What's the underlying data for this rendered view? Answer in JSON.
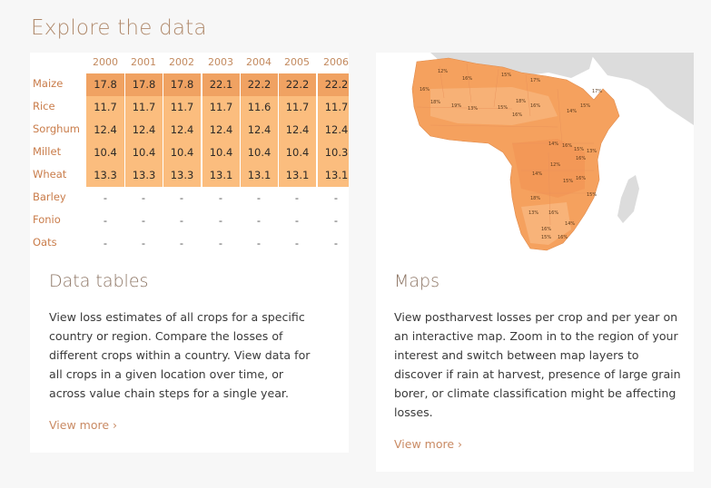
{
  "page": {
    "title": "Explore the data"
  },
  "tables_card": {
    "years": [
      "2000",
      "2001",
      "2002",
      "2003",
      "2004",
      "2005",
      "2006"
    ],
    "rows": [
      {
        "crop": "Maize",
        "values": [
          "17.8",
          "17.8",
          "17.8",
          "22.1",
          "22.2",
          "22.2",
          "22.2"
        ]
      },
      {
        "crop": "Rice",
        "values": [
          "11.7",
          "11.7",
          "11.7",
          "11.7",
          "11.6",
          "11.7",
          "11.7"
        ]
      },
      {
        "crop": "Sorghum",
        "values": [
          "12.4",
          "12.4",
          "12.4",
          "12.4",
          "12.4",
          "12.4",
          "12.4"
        ]
      },
      {
        "crop": "Millet",
        "values": [
          "10.4",
          "10.4",
          "10.4",
          "10.4",
          "10.4",
          "10.4",
          "10.3"
        ]
      },
      {
        "crop": "Wheat",
        "values": [
          "13.3",
          "13.3",
          "13.3",
          "13.1",
          "13.1",
          "13.1",
          "13.1"
        ]
      },
      {
        "crop": "Barley",
        "values": [
          "-",
          "-",
          "-",
          "-",
          "-",
          "-",
          "-"
        ]
      },
      {
        "crop": "Fonio",
        "values": [
          "-",
          "-",
          "-",
          "-",
          "-",
          "-",
          "-"
        ]
      },
      {
        "crop": "Oats",
        "values": [
          "-",
          "-",
          "-",
          "-",
          "-",
          "-",
          "-"
        ]
      }
    ],
    "heading": "Data tables",
    "body": "View loss estimates of all crops for a specific country or region. Compare the losses of different crops within a country. View data for all crops in a given location over time, or across value chain steps for a single year.",
    "link": "View more ›"
  },
  "maps_card": {
    "heading": "Maps",
    "body": "View postharvest losses per crop and per year on an interactive map. Zoom in to the region of your interest and switch between map layers to discover if rain at harvest, presence of large grain borer, or climate classification might be affecting losses.",
    "link": "View more ›",
    "map_labels": [
      "12%",
      "16%",
      "15%",
      "17%",
      "16%",
      "18%",
      "19%",
      "13%",
      "15%",
      "18%",
      "16%",
      "14%",
      "15%",
      "17%",
      "14%",
      "16%",
      "15%",
      "13%",
      "16%",
      "12%",
      "14%",
      "15%",
      "16%",
      "15%",
      "18%",
      "16%",
      "13%",
      "16%",
      "14%",
      "16%",
      "15%",
      "16%"
    ]
  },
  "colors": {
    "title": "#b08a6c",
    "accent": "#c98a63",
    "cell_dark": "#f0a262",
    "cell_light": "#fbbd7e",
    "land_orange": "#f5a15e",
    "land_grey": "#dcdcdc"
  }
}
